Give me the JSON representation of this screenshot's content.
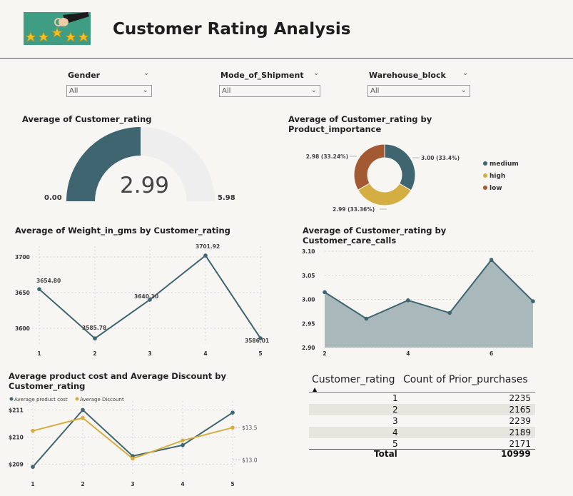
{
  "header": {
    "title": "Customer Rating Analysis"
  },
  "slicers": [
    {
      "label": "Gender",
      "value": "All"
    },
    {
      "label": "Mode_of_Shipment",
      "value": "All"
    },
    {
      "label": "Warehouse_block",
      "value": "All"
    }
  ],
  "colors": {
    "teal": "#3e6570",
    "gold": "#d4ae42",
    "rust": "#a35a32",
    "area": "#a9b9bb",
    "gauge_bg": "#eeeeee"
  },
  "gauge": {
    "title": "Average of Customer_rating",
    "value": "2.99",
    "min": "0.00",
    "max": "5.98"
  },
  "chart_data": [
    {
      "type": "pie",
      "subtype": "donut",
      "title": "Average of Customer_rating by Product_importance",
      "labels": [
        "medium",
        "high",
        "low"
      ],
      "values": [
        3.0,
        2.99,
        2.98
      ],
      "percent_labels": [
        "3.00 (33.4%)",
        "2.99 (33.36%)",
        "2.98 (33.24%)"
      ],
      "colors": [
        "#3e6570",
        "#d4ae42",
        "#a35a32"
      ],
      "legend": "right"
    },
    {
      "type": "line",
      "title": "Average of Weight_in_gms by Customer_rating",
      "x": [
        1,
        2,
        3,
        4,
        5
      ],
      "values": [
        3654.8,
        3585.78,
        3640.1,
        3701.92,
        3586.01
      ],
      "data_labels": [
        "3654.80",
        "3585.78",
        "3640.10",
        "3701.92",
        "3586.01"
      ],
      "y_ticks": [
        "3600",
        "3650",
        "3700"
      ],
      "ylim": [
        3580,
        3720
      ],
      "grid": true
    },
    {
      "type": "area",
      "title": "Average of Customer_rating by Customer_care_calls",
      "x": [
        2,
        3,
        4,
        5,
        6,
        7
      ],
      "x_ticks": [
        "2",
        "4",
        "6"
      ],
      "values": [
        3.015,
        2.96,
        2.998,
        2.972,
        3.082,
        2.996
      ],
      "y_ticks": [
        "2.90",
        "2.95",
        "3.00",
        "3.05",
        "3.10"
      ],
      "ylim": [
        2.9,
        3.1
      ],
      "grid": true
    },
    {
      "type": "line",
      "title": "Average product cost and Average Discount by Customer_rating",
      "x": [
        1,
        2,
        3,
        4,
        5
      ],
      "legend": "top-left",
      "series": [
        {
          "name": "Average  product cost",
          "values": [
            208.9,
            211.0,
            209.3,
            209.7,
            210.9
          ],
          "color": "#3e6570"
        },
        {
          "name": "Average Discount",
          "values": [
            13.45,
            13.65,
            13.02,
            13.3,
            13.5
          ],
          "color": "#d4ae42"
        }
      ],
      "y_ticks_left": [
        "$209",
        "$210",
        "$211"
      ],
      "y_ticks_right": [
        "$13.0",
        "$13.5"
      ],
      "ylim_left": [
        208.8,
        211.3
      ],
      "ylim_right": [
        12.85,
        13.9
      ]
    }
  ],
  "table": {
    "columns": [
      "Customer_rating",
      "Count of Prior_purchases"
    ],
    "rows": [
      {
        "rating": "1",
        "count": "2235"
      },
      {
        "rating": "2",
        "count": "2165"
      },
      {
        "rating": "3",
        "count": "2239"
      },
      {
        "rating": "4",
        "count": "2189"
      },
      {
        "rating": "5",
        "count": "2171"
      }
    ],
    "total_label": "Total",
    "total_value": "10999"
  }
}
